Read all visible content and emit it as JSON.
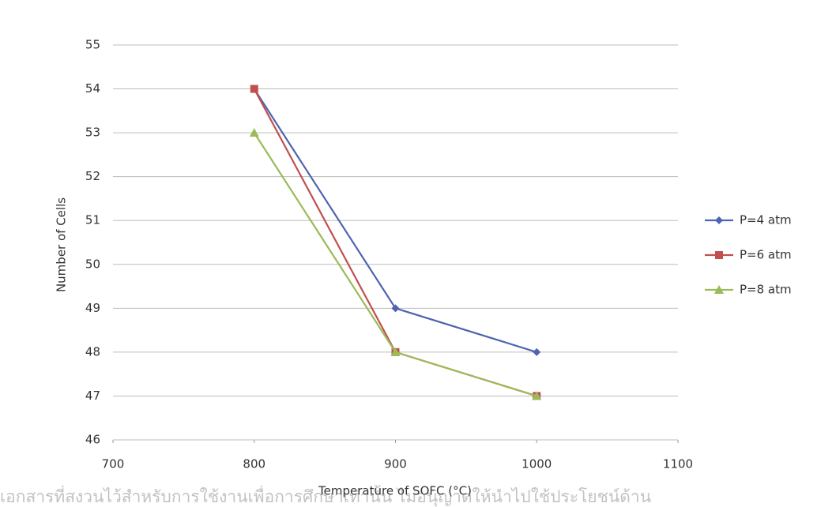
{
  "chart_data": {
    "type": "line",
    "x_label": "Temperature of SOFC (°C)",
    "y_label": "Number of Cells",
    "x": [
      800,
      900,
      1000
    ],
    "series": [
      {
        "name": "P=4 atm",
        "color": "#4f64b0",
        "marker": "diamond",
        "values": [
          54,
          49,
          48
        ]
      },
      {
        "name": "P=6 atm",
        "color": "#c0504d",
        "marker": "square",
        "values": [
          54,
          48,
          47
        ]
      },
      {
        "name": "P=8 atm",
        "color": "#9bbb59",
        "marker": "triangle",
        "values": [
          53,
          48,
          47
        ]
      }
    ],
    "xlim": [
      700,
      1100
    ],
    "xticks": [
      700,
      800,
      900,
      1000,
      1100
    ],
    "ylim": [
      46,
      55
    ],
    "yticks": [
      46,
      47,
      48,
      49,
      50,
      51,
      52,
      53,
      54,
      55
    ],
    "grid": true,
    "legend": "right",
    "footer": "เอกสารที่สงวนไว้สำหรับการใช้งานเพื่อการศึกษาเท่านั้น ไม่อนุญาตให้นำไปใช้ประโยชน์ด้าน"
  }
}
